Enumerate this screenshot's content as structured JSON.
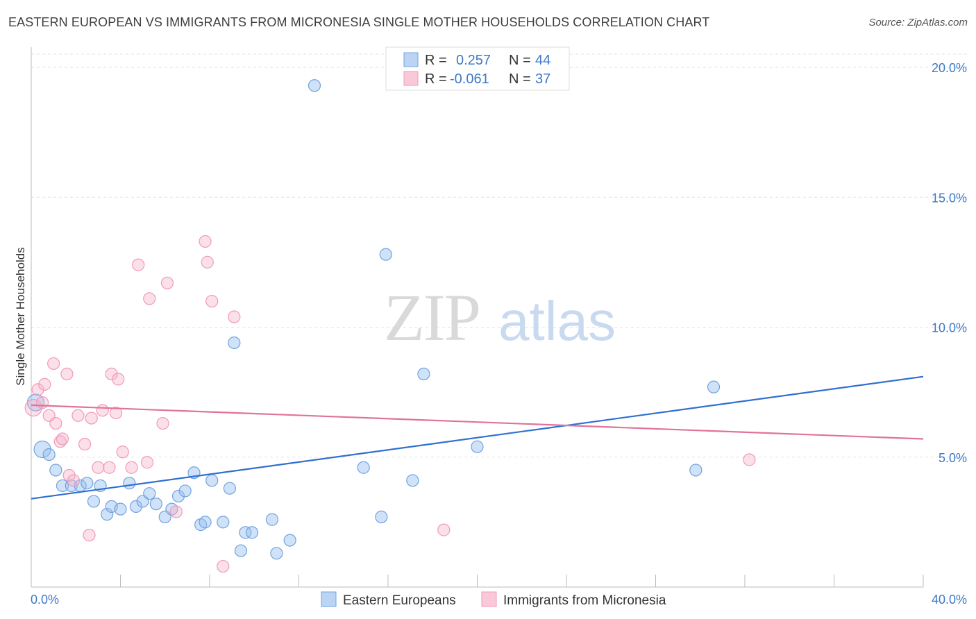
{
  "header": {
    "title": "EASTERN EUROPEAN VS IMMIGRANTS FROM MICRONESIA SINGLE MOTHER HOUSEHOLDS CORRELATION CHART",
    "source": "Source: ZipAtlas.com"
  },
  "watermark": {
    "zip": "ZIP",
    "atlas": "atlas"
  },
  "legend_top": [
    {
      "r_label": "R =",
      "r_value": "0.257",
      "n_label": "N =",
      "n_value": "44"
    },
    {
      "r_label": "R =",
      "r_value": "-0.061",
      "n_label": "N =",
      "n_value": "37"
    }
  ],
  "chart_data": {
    "type": "scatter",
    "title": "EASTERN EUROPEAN VS IMMIGRANTS FROM MICRONESIA SINGLE MOTHER HOUSEHOLDS CORRELATION CHART",
    "xlabel": "",
    "ylabel": "Single Mother Households",
    "xlim": [
      0,
      40
    ],
    "ylim": [
      0,
      20.5
    ],
    "x_tick_labels": [
      "0.0%",
      "40.0%"
    ],
    "y_ticks": [
      5,
      10,
      15,
      20
    ],
    "y_tick_labels": [
      "5.0%",
      "10.0%",
      "15.0%",
      "20.0%"
    ],
    "grid": true,
    "legend_position": "top-center",
    "colors": {
      "blue": "#6fa3e0",
      "pink": "#f09ab8",
      "blue_line": "#2f6fcf",
      "pink_line": "#e0729b",
      "tick": "#3d78c7"
    },
    "series": [
      {
        "name": "Eastern Europeans",
        "color": "#6fa3e0",
        "r": 0.257,
        "n": 44,
        "trend": [
          [
            0,
            3.4
          ],
          [
            40,
            8.1
          ]
        ],
        "points": [
          [
            0.2,
            7.1
          ],
          [
            0.5,
            5.3
          ],
          [
            0.8,
            5.1
          ],
          [
            1.1,
            4.5
          ],
          [
            1.4,
            3.9
          ],
          [
            1.8,
            3.9
          ],
          [
            2.2,
            3.9
          ],
          [
            2.5,
            4.0
          ],
          [
            2.8,
            3.3
          ],
          [
            3.1,
            3.9
          ],
          [
            3.4,
            2.8
          ],
          [
            3.6,
            3.1
          ],
          [
            4.0,
            3.0
          ],
          [
            4.4,
            4.0
          ],
          [
            4.7,
            3.1
          ],
          [
            5.0,
            3.3
          ],
          [
            5.3,
            3.6
          ],
          [
            5.6,
            3.2
          ],
          [
            6.0,
            2.7
          ],
          [
            6.3,
            3.0
          ],
          [
            6.6,
            3.5
          ],
          [
            6.9,
            3.7
          ],
          [
            7.3,
            4.4
          ],
          [
            7.6,
            2.4
          ],
          [
            7.8,
            2.5
          ],
          [
            8.1,
            4.1
          ],
          [
            8.6,
            2.5
          ],
          [
            8.9,
            3.8
          ],
          [
            9.1,
            9.4
          ],
          [
            9.6,
            2.1
          ],
          [
            9.9,
            2.1
          ],
          [
            9.4,
            1.4
          ],
          [
            10.8,
            2.6
          ],
          [
            11.0,
            1.3
          ],
          [
            11.6,
            1.8
          ],
          [
            12.7,
            19.3
          ],
          [
            14.9,
            4.6
          ],
          [
            15.7,
            2.7
          ],
          [
            15.9,
            12.8
          ],
          [
            17.1,
            4.1
          ],
          [
            17.6,
            8.2
          ],
          [
            20.0,
            5.4
          ],
          [
            29.8,
            4.5
          ],
          [
            30.6,
            7.7
          ]
        ]
      },
      {
        "name": "Immigrants from Micronesia",
        "color": "#f09ab8",
        "r": -0.061,
        "n": 37,
        "trend": [
          [
            0,
            7.0
          ],
          [
            40,
            5.7
          ]
        ],
        "points": [
          [
            0.1,
            6.9
          ],
          [
            0.3,
            7.6
          ],
          [
            0.5,
            7.1
          ],
          [
            0.6,
            7.8
          ],
          [
            0.8,
            6.6
          ],
          [
            1.0,
            8.6
          ],
          [
            1.1,
            6.3
          ],
          [
            1.3,
            5.6
          ],
          [
            1.4,
            5.7
          ],
          [
            1.6,
            8.2
          ],
          [
            1.7,
            4.3
          ],
          [
            1.9,
            4.1
          ],
          [
            2.1,
            6.6
          ],
          [
            2.4,
            5.5
          ],
          [
            2.6,
            2.0
          ],
          [
            2.7,
            6.5
          ],
          [
            3.0,
            4.6
          ],
          [
            3.2,
            6.8
          ],
          [
            3.5,
            4.6
          ],
          [
            3.6,
            8.2
          ],
          [
            3.8,
            6.7
          ],
          [
            3.9,
            8.0
          ],
          [
            4.1,
            5.2
          ],
          [
            4.5,
            4.6
          ],
          [
            4.8,
            12.4
          ],
          [
            5.2,
            4.8
          ],
          [
            5.3,
            11.1
          ],
          [
            5.9,
            6.3
          ],
          [
            6.1,
            11.7
          ],
          [
            6.5,
            2.9
          ],
          [
            7.8,
            13.3
          ],
          [
            7.9,
            12.5
          ],
          [
            8.1,
            11.0
          ],
          [
            8.6,
            0.8
          ],
          [
            9.1,
            10.4
          ],
          [
            18.5,
            2.2
          ],
          [
            32.2,
            4.9
          ]
        ]
      }
    ]
  },
  "legend_bottom": [
    {
      "label": "Eastern Europeans"
    },
    {
      "label": "Immigrants from Micronesia"
    }
  ]
}
